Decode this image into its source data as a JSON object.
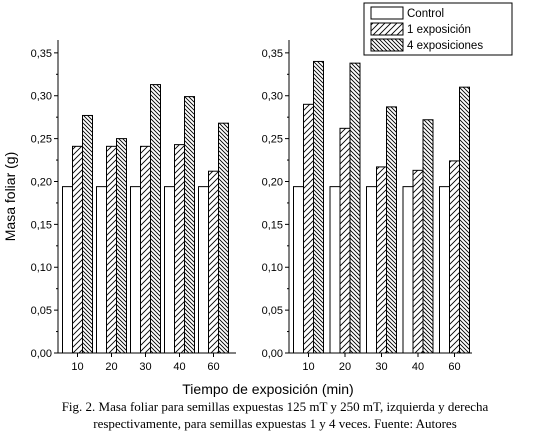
{
  "chart_data": [
    {
      "type": "bar",
      "panel": "left",
      "categories": [
        "10",
        "20",
        "30",
        "40",
        "60"
      ],
      "series": [
        {
          "name": "Control",
          "values": [
            0.194,
            0.194,
            0.194,
            0.194,
            0.194
          ]
        },
        {
          "name": "1 exposición",
          "values": [
            0.241,
            0.241,
            0.241,
            0.243,
            0.212
          ]
        },
        {
          "name": "4 exposiciones",
          "values": [
            0.277,
            0.25,
            0.313,
            0.299,
            0.268
          ]
        }
      ],
      "ylabel": "Masa foliar (g)",
      "ylim": [
        0,
        0.35
      ],
      "yticks": [
        "0,00",
        "0,05",
        "0,10",
        "0,15",
        "0,20",
        "0,25",
        "0,30",
        "0,35"
      ],
      "grid": false
    },
    {
      "type": "bar",
      "panel": "right",
      "categories": [
        "10",
        "20",
        "30",
        "40",
        "60"
      ],
      "series": [
        {
          "name": "Control",
          "values": [
            0.194,
            0.194,
            0.194,
            0.194,
            0.194
          ]
        },
        {
          "name": "1 exposición",
          "values": [
            0.29,
            0.262,
            0.217,
            0.213,
            0.224
          ]
        },
        {
          "name": "4 exposiciones",
          "values": [
            0.34,
            0.338,
            0.287,
            0.272,
            0.31
          ]
        }
      ],
      "ylim": [
        0,
        0.35
      ],
      "yticks": [
        "0,00",
        "0,05",
        "0,10",
        "0,15",
        "0,20",
        "0,25",
        "0,30",
        "0,35"
      ],
      "grid": false
    }
  ],
  "xlabel": "Tiempo de exposición (min)",
  "legend": {
    "position": "top-right",
    "entries": [
      "Control",
      "1 exposición",
      "4 exposiciones"
    ]
  },
  "caption": {
    "line1": "Fig. 2. Masa foliar para semillas expuestas 125 mT y 250 mT, izquierda y derecha",
    "line2": "respectivamente, para semillas expuestas 1 y 4 veces. Fuente: Autores"
  }
}
